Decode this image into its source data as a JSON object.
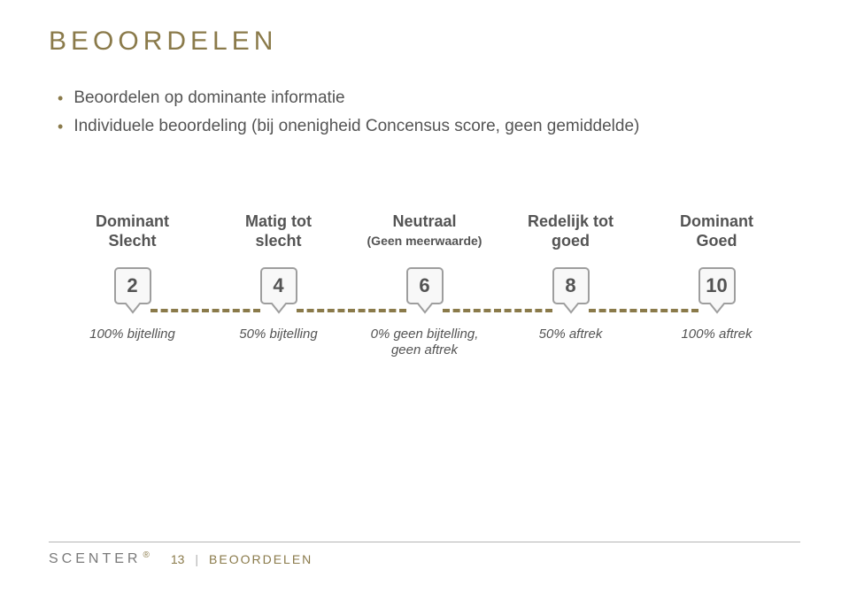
{
  "title": "BEOORDELEN",
  "bullets": [
    "Beoordelen op dominante informatie",
    "Individuele beoordeling (bij onenigheid Concensus score, geen gemiddelde)"
  ],
  "diagram": {
    "type": "infographic",
    "dash_color": "#8a7a4a",
    "marker_fill": "#f8f8f8",
    "marker_stroke": "#9e9e9e",
    "text_color": "#545454",
    "points": [
      {
        "label_line1": "Dominant",
        "label_line2": "Slecht",
        "sub": "",
        "value": "2",
        "caption": "100% bijtelling"
      },
      {
        "label_line1": "Matig tot",
        "label_line2": "slecht",
        "sub": "",
        "value": "4",
        "caption": "50% bijtelling"
      },
      {
        "label_line1": "Neutraal",
        "label_line2": "",
        "sub": "(Geen meerwaarde)",
        "value": "6",
        "caption": "0% geen bijtelling,\ngeen aftrek"
      },
      {
        "label_line1": "Redelijk tot",
        "label_line2": "goed",
        "sub": "",
        "value": "8",
        "caption": "50% aftrek"
      },
      {
        "label_line1": "Dominant",
        "label_line2": "Goed",
        "sub": "",
        "value": "10",
        "caption": "100% aftrek"
      }
    ]
  },
  "footer": {
    "logo": "SCENTER",
    "page_number": "13",
    "separator": "|",
    "breadcrumb": "BEOORDELEN"
  }
}
